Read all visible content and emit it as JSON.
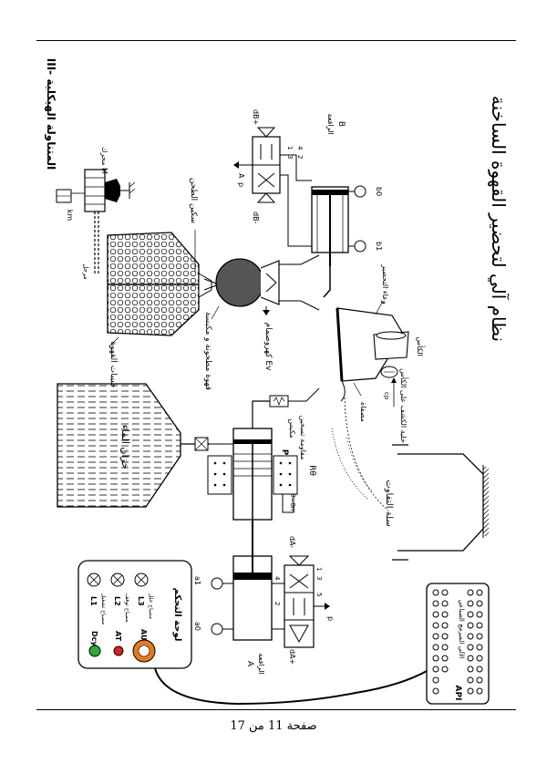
{
  "page": {
    "title": "نظام آلي لتحضير القهوة الساخنة",
    "section": "III- المتناولة الهيكلية",
    "footer": "صفحة 11 من 17"
  },
  "labels": {
    "water_tank": "خزان الماء",
    "coffee_beans": "حبيبات القهوة",
    "grinder_blade": "سكين الطحن",
    "ground_coffee": "قهوة مطحونة و مكبسة",
    "electrovalve": "كهروصمام Ev",
    "motor": "محرك M",
    "km": "km",
    "relay": "مرحل",
    "piston": "مكبس",
    "piston_p": "P",
    "heater": "مقاومة تسخين",
    "heater_r": "Rθ",
    "thermostat": "θ=8m",
    "filter": "مصفاة",
    "brew_vessel": "وعاء التحضير",
    "cup": "الكأس",
    "cup_sensor": "خلية الكشف على الكأس",
    "cup_sensor_id": "cp",
    "waste_bin": "سلة التفاوت",
    "jack_a": "الرافعة",
    "jack_a_id": "A",
    "jack_b": "الرافعة",
    "jack_b_id": "B",
    "a0": "a0",
    "a1": "a1",
    "b0": "b0",
    "b1": "b1",
    "dA_plus": "dA+",
    "dA_minus": "dA-",
    "dB_plus": "dB+",
    "dB_minus": "dB-",
    "p_sym": "p",
    "p_sym2": "p",
    "port_a": "A",
    "port_1": "1",
    "port_3": "3",
    "port_4": "4",
    "port_2": "2",
    "port_5": "5",
    "port_b1": "1",
    "port_b3": "3",
    "port_b4": "4",
    "port_b2": "2"
  },
  "panel": {
    "title": "لوحة التحكم",
    "lamps": [
      {
        "id": "L1",
        "text": "مصباح تشغيل"
      },
      {
        "id": "L2",
        "text": "مصباح توقف"
      },
      {
        "id": "L3",
        "text": "مصباح خلل"
      }
    ],
    "buttons": [
      {
        "id": "Dcy",
        "color": "#2eaa3a"
      },
      {
        "id": "AT",
        "color": "#d9201d"
      },
      {
        "id": "AU",
        "color": "#e7781b"
      }
    ]
  },
  "api": {
    "label": "API",
    "text": "الآلي المبرمج الصناعي"
  }
}
